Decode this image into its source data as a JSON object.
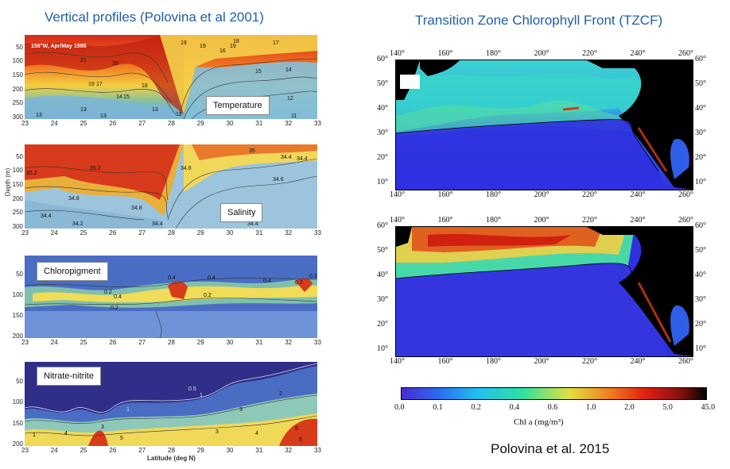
{
  "left_title": "Vertical profiles (Polovina et al 2001)",
  "right_title": "Transition Zone Chlorophyll Front (TZCF)",
  "citation": "Polovina et al. 2015",
  "profiles": {
    "latitude_ticks": [
      "23",
      "24",
      "25",
      "26",
      "27",
      "28",
      "29",
      "30",
      "31",
      "32",
      "33"
    ],
    "depth_ticks_300": [
      "50",
      "100",
      "150",
      "200",
      "250",
      "300"
    ],
    "depth_ticks_200": [
      "50",
      "100",
      "150",
      "200"
    ],
    "depth_axis_label": "Depth (m)",
    "lat_axis_label": "Latitude (deg N)",
    "header_text": "158°W, Apr/May 1998",
    "panels": [
      {
        "label": "Temperature"
      },
      {
        "label": "Salinity"
      },
      {
        "label": "Chloropigment"
      },
      {
        "label": "Nitrate-nitrite"
      }
    ],
    "contour_labels": {
      "temperature": [
        "19",
        "19",
        "19",
        "18",
        "17",
        "16",
        "21",
        "20",
        "15",
        "14",
        "18",
        "19",
        "17",
        "14",
        "15",
        "13",
        "13",
        "13",
        "12",
        "12",
        "11",
        "13"
      ],
      "salinity": [
        "35",
        "35.2",
        "34.6",
        "34.8",
        "35.2",
        "34.8",
        "34.4",
        "34.6",
        "34.4",
        "34.4",
        "34.4",
        "34.2",
        "34.4"
      ],
      "chloro": [
        "0.2",
        "0.4",
        "0.2",
        "0.4",
        "0.4",
        "0.2",
        "0.2",
        "0.4",
        "0.3"
      ],
      "nitrate": [
        "0.5",
        "1",
        "1",
        "2",
        "1",
        "3",
        "4",
        "3",
        "5",
        "3",
        "4",
        "5",
        "6"
      ]
    }
  },
  "maps": {
    "lon_ticks": [
      "140°",
      "160°",
      "180°",
      "200°",
      "220°",
      "240°",
      "260°"
    ],
    "lat_ticks": [
      "60°",
      "50°",
      "40°",
      "30°",
      "20°",
      "10°"
    ]
  },
  "colorbar": {
    "label": "Chl a (mg/m³)",
    "ticks": [
      "0.0",
      "0.1",
      "0.2",
      "0.4",
      "0.6",
      "1.0",
      "2.0",
      "5.0",
      "45.0"
    ]
  }
}
